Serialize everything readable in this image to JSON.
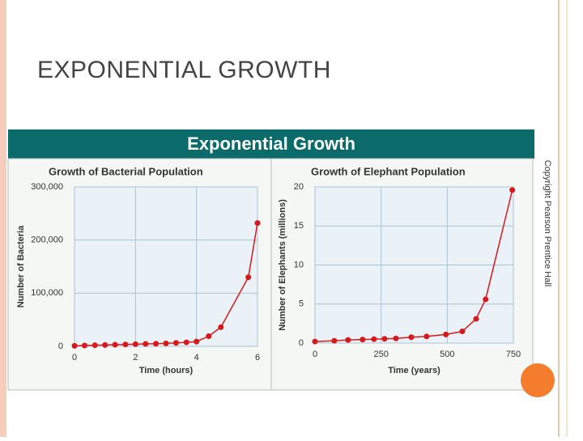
{
  "slide_title": "EXPONENTIAL GROWTH",
  "banner": "Exponential Growth",
  "copyright": "Copyright Pearson Prentice Hall",
  "chart_data": [
    {
      "type": "line",
      "title": "Growth of Bacterial Population",
      "x_label": "Time (hours)",
      "y_label": "Number of Bacteria",
      "x": [
        0,
        0.33,
        0.67,
        1,
        1.33,
        1.67,
        2,
        2.33,
        2.67,
        3,
        3.33,
        3.67,
        4,
        4.4,
        4.8,
        5.7,
        6
      ],
      "values": [
        1000,
        1500,
        2000,
        2500,
        3000,
        3500,
        4000,
        4500,
        5000,
        5500,
        6500,
        7500,
        9000,
        19000,
        36000,
        130000,
        232000
      ],
      "color": "#d7191c",
      "xlim": [
        0,
        6
      ],
      "xticks": [
        0,
        2,
        4,
        6
      ],
      "ylim": [
        0,
        300000
      ],
      "yticks": [
        0,
        {
          "value": 100000,
          "label": "100,000"
        },
        {
          "value": 200000,
          "label": "200,000"
        },
        {
          "value": 300000,
          "label": "300,000"
        }
      ],
      "grid": true
    },
    {
      "type": "line",
      "title": "Growth of Elephant Population",
      "x_label": "Time (years)",
      "y_label": "Number of Elephants (millions)",
      "x": [
        0,
        73,
        125,
        180,
        223,
        263,
        306,
        364,
        422,
        495,
        557,
        609,
        645,
        746
      ],
      "values": [
        0.2,
        0.3,
        0.4,
        0.45,
        0.5,
        0.55,
        0.6,
        0.75,
        0.85,
        1.1,
        1.5,
        3.1,
        5.6,
        19.6
      ],
      "color": "#d7191c",
      "xlim": [
        0,
        750
      ],
      "xticks": [
        0,
        250,
        500,
        750
      ],
      "ylim": [
        0,
        20
      ],
      "yticks": [
        0,
        5,
        10,
        15,
        20
      ],
      "grid": true
    }
  ]
}
